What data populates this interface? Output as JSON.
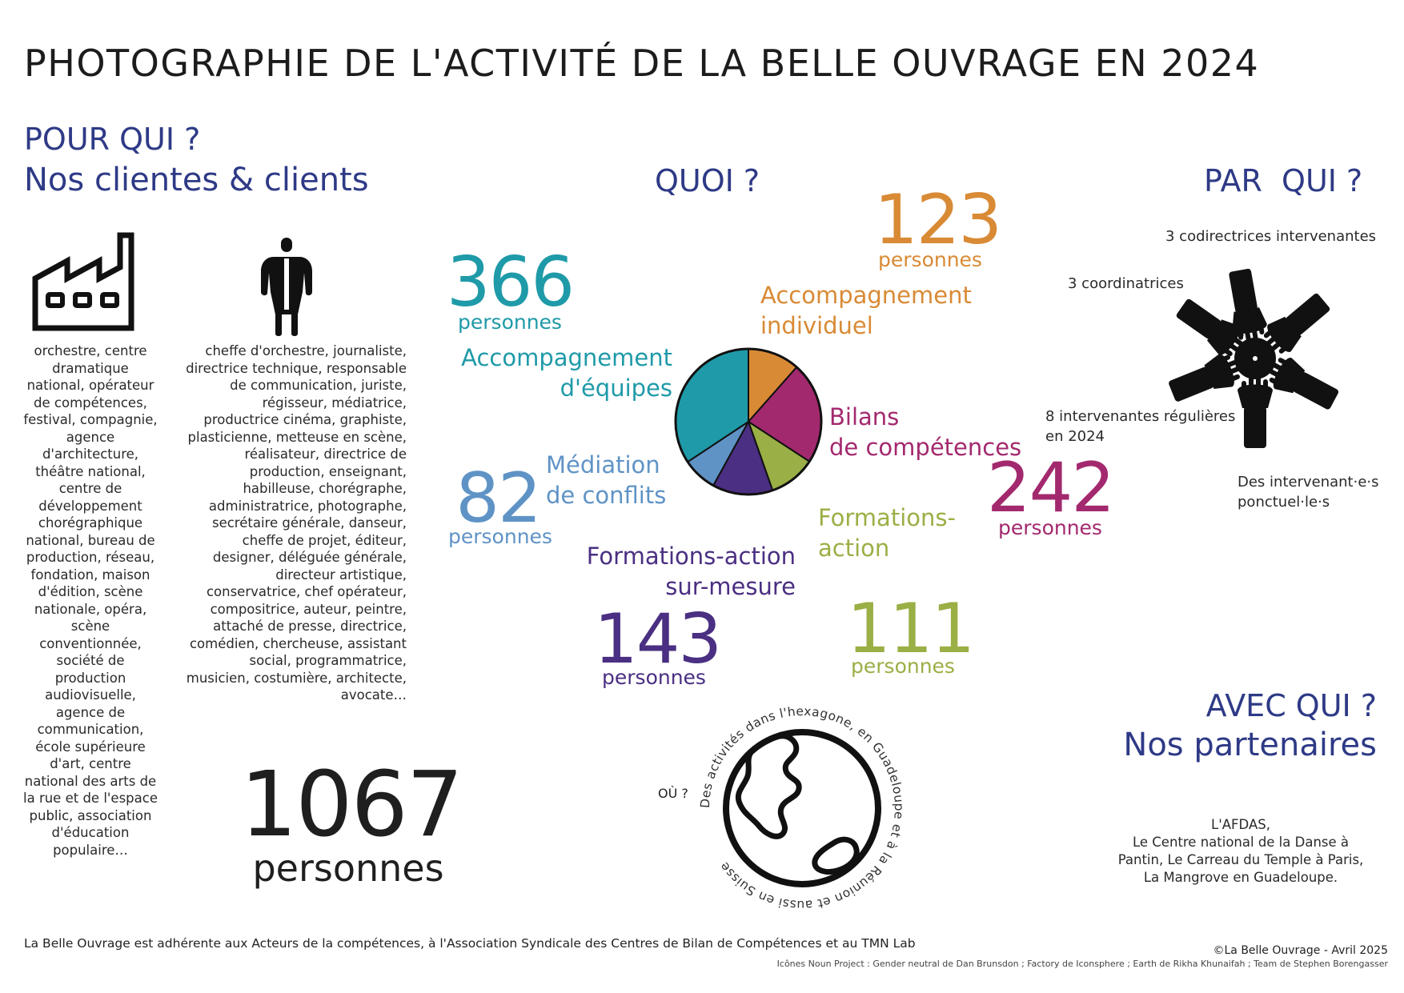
{
  "title": "PHOTOGRAPHIE DE L'ACTIVITÉ DE LA BELLE OUVRAGE EN 2024",
  "pour_qui": {
    "heading": "POUR QUI ?",
    "subheading": "Nos clientes & clients",
    "organisations_text": "orchestre, centre dramatique national, opérateur de compétences, festival, compagnie, agence d'architecture, théâtre national, centre de développement chorégraphique national, bureau de production, réseau, fondation, maison d'édition, scène nationale, opéra, scène conventionnée, société de production audiovisuelle, agence de communication, école supérieure d'art, centre national des arts de la rue et de l'espace public, association d'éducation populaire…",
    "people_text": "cheffe d'orchestre, journaliste, directrice technique, responsable de communication, juriste, régisseur, médiatrice, productrice cinéma, graphiste, plasticienne, metteuse en scène, réalisateur, directrice de production, enseignant, habilleuse, chorégraphe, administratrice, photographe, secrétaire générale, danseur, cheffe de projet, éditeur, designer, déléguée générale, directeur artistique, conservatrice, chef opérateur, compositrice, auteur, peintre, attaché de presse, directrice, comédien, chercheuse, assistant social, programmatrice, musicien, costumière, architecte, avocate…",
    "total_number": "1067",
    "total_label": "personnes"
  },
  "quoi": {
    "heading": "QUOI ?",
    "categories": [
      {
        "name_line1": "Accompagnement",
        "name_line2": "individuel",
        "number": "123",
        "unit": "personnes",
        "color": "#d98a35"
      },
      {
        "name_line1": "Bilans",
        "name_line2": "de compétences",
        "number": "242",
        "unit": "personnes",
        "color": "#a3296e"
      },
      {
        "name_line1": "Formations-",
        "name_line2": "action",
        "number": "111",
        "unit": "personnes",
        "color": "#9aaf45"
      },
      {
        "name_line1": "Formations-action",
        "name_line2": "sur-mesure",
        "number": "143",
        "unit": "personnes",
        "color": "#4a2f82"
      },
      {
        "name_line1": "Médiation",
        "name_line2": "de conflits",
        "number": "82",
        "unit": "personnes",
        "color": "#5f93c6"
      },
      {
        "name_line1": "Accompagnement",
        "name_line2": "d'équipes",
        "number": "366",
        "unit": "personnes",
        "color": "#1f9aa8"
      }
    ]
  },
  "chart_data": {
    "type": "pie",
    "categories": [
      "Accompagnement individuel",
      "Bilans de compétences",
      "Formations-action",
      "Formations-action sur-mesure",
      "Médiation de conflits",
      "Accompagnement d'équipes"
    ],
    "values": [
      123,
      242,
      111,
      143,
      82,
      366
    ],
    "colors": [
      "#d98a35",
      "#a3296e",
      "#9aaf45",
      "#4a2f82",
      "#5f93c6",
      "#1f9aa8"
    ]
  },
  "par_qui": {
    "heading": "PAR  QUI ?",
    "codirectrices": "3 codirectrices intervenantes",
    "coordinatrices": "3 coordinatrices",
    "regulieres_line1": "8 intervenantes régulières",
    "regulieres_line2": "en 2024",
    "ponctuels_line1": "Des intervenant·e·s",
    "ponctuels_line2": "ponctuel·le·s"
  },
  "ou": {
    "label": "OÙ ?",
    "circular_text": "Des activités dans l'hexagone, en Guadeloupe et à la Réunion et aussi en Suisse"
  },
  "avec_qui": {
    "heading": "AVEC QUI ?",
    "subheading": "Nos partenaires",
    "partners_line1": "L'AFDAS,",
    "partners_line2": "Le Centre national de la Danse à",
    "partners_line3": "Pantin, Le Carreau du Temple à Paris,",
    "partners_line4": "La Mangrove en Guadeloupe."
  },
  "icons": {
    "factory": "factory-icon",
    "person": "gender-neutral-person-icon",
    "team": "team-hands-icon",
    "earth": "earth-globe-icon"
  },
  "footer": {
    "membership": "La Belle Ouvrage est adhérente aux Acteurs de la compétences, à l'Association Syndicale des Centres de Bilan de Compétences et au TMN Lab",
    "copyright": "©La Belle Ouvrage - Avril 2025",
    "credits": "Icônes Noun Project :  Gender neutral de Dan Brunsdon ;  Factory de Iconsphere ; Earth de Rikha Khunaifah ;  Team de Stephen Borengasser"
  }
}
